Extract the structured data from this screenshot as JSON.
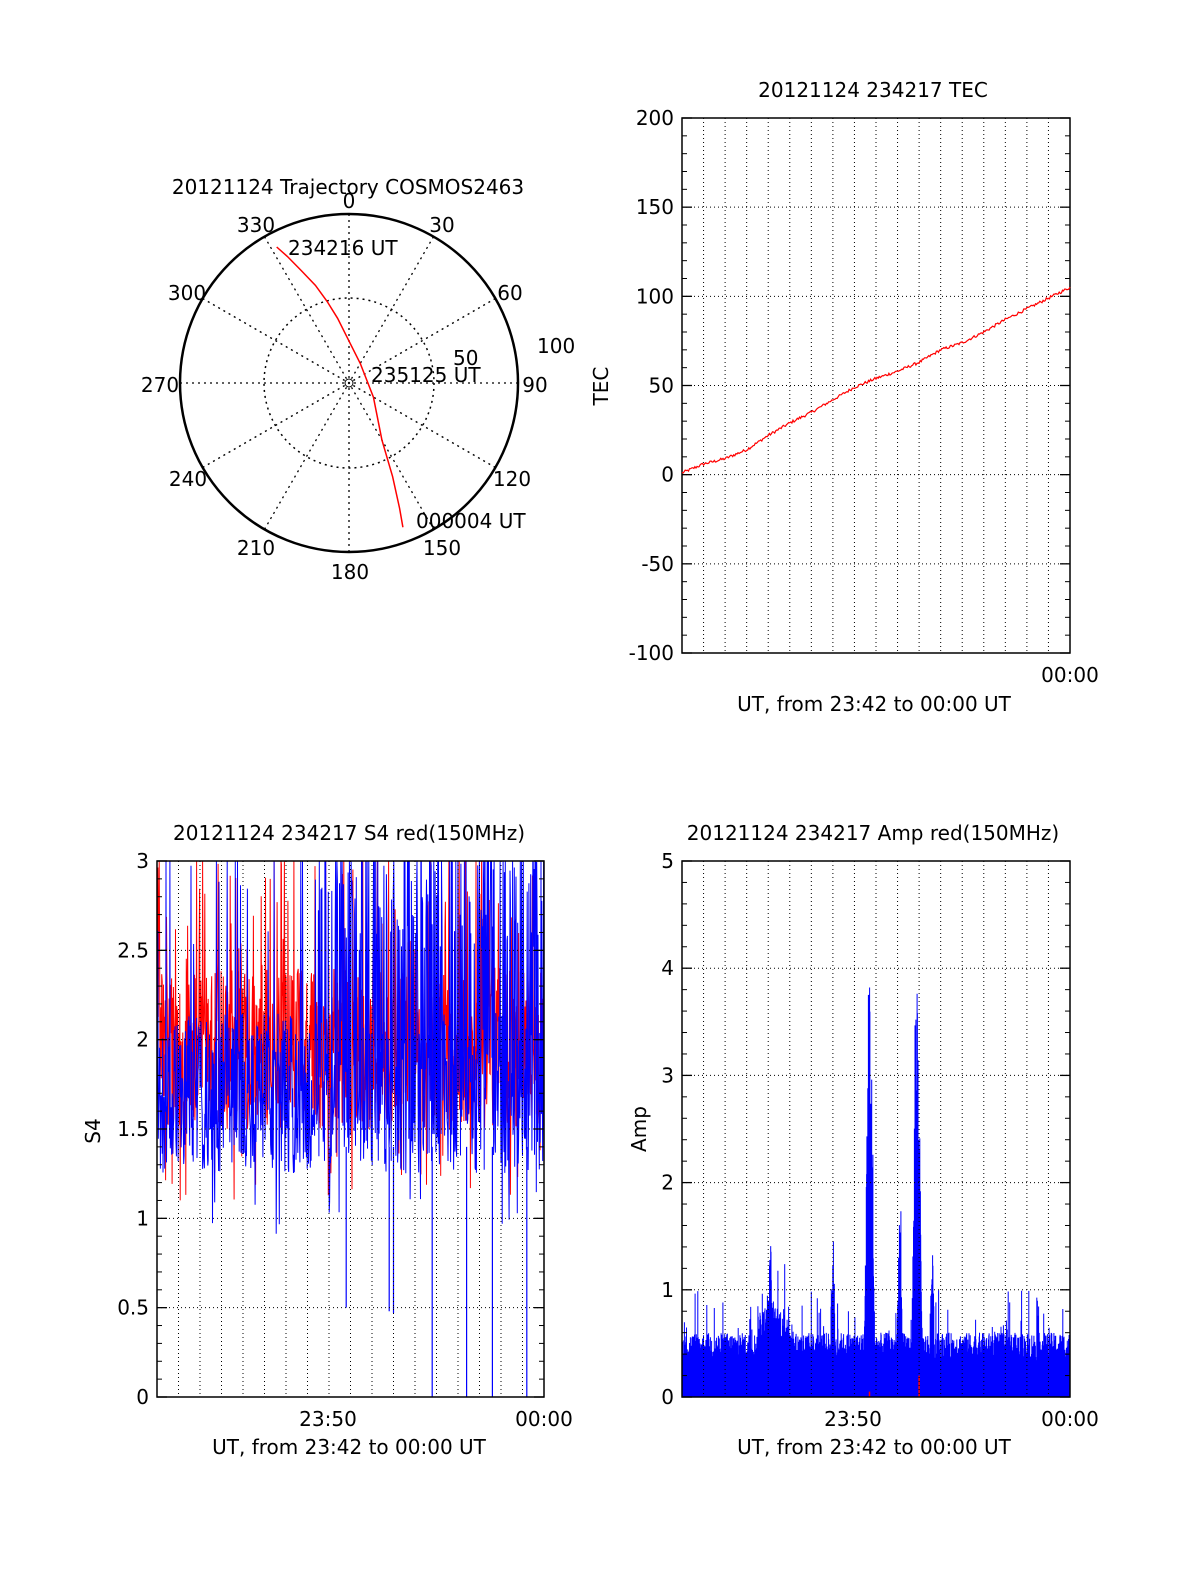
{
  "colors": {
    "red": "#ff0000",
    "blue": "#0000ff",
    "axis": "#000000",
    "grid": "#000000"
  },
  "chart_data": [
    {
      "type": "polar",
      "title": "20121124 Trajectory COSMOS2463",
      "azimuth_labels": [
        "0",
        "30",
        "60",
        "90",
        "120",
        "150",
        "180",
        "210",
        "240",
        "270",
        "300",
        "330"
      ],
      "radial_labels": [
        "50",
        "100"
      ],
      "track_labels": [
        "234216 UT",
        "235125 UT",
        "000004 UT"
      ],
      "track": {
        "azimuth_deg": [
          332,
          334,
          337,
          341,
          345,
          350,
          357,
          30,
          120,
          150,
          155,
          158,
          159.5
        ],
        "elevation_deg": [
          8,
          15,
          25,
          35,
          45,
          55,
          65,
          78,
          75,
          55,
          35,
          18,
          8
        ]
      }
    },
    {
      "type": "line",
      "title": "20121124 234217 TEC",
      "ylabel": "TEC",
      "xlabel": "UT, from 23:42 to 00:00 UT",
      "x_tick_labels": [
        "00:00"
      ],
      "y_tick_labels": [
        "200",
        "150",
        "100",
        "50",
        "0",
        "-50",
        "-100"
      ],
      "ylim": [
        -100,
        200
      ],
      "series": [
        {
          "x_min": [
            0,
            1,
            2,
            3,
            4,
            5,
            6,
            7,
            8,
            9,
            10,
            11,
            12,
            13,
            14,
            15,
            16,
            17,
            18
          ],
          "values": [
            1,
            6,
            9,
            14,
            22,
            29,
            35,
            42,
            49,
            54,
            58,
            63,
            70,
            74,
            80,
            87,
            93,
            99,
            105
          ]
        }
      ]
    },
    {
      "type": "line",
      "title": "20121124 234217 S4 red(150MHz)",
      "ylabel": "S4",
      "xlabel": "UT, from 23:42 to 00:00 UT",
      "x_tick_labels": [
        "23:50",
        "00:00"
      ],
      "y_tick_labels": [
        "3",
        "2.5",
        "2",
        "1.5",
        "1",
        "0.5",
        "0"
      ],
      "ylim": [
        0,
        3
      ],
      "xlim_min": [
        0,
        18
      ],
      "series": [
        {
          "name": "red",
          "approx_center": 1.95,
          "approx_spread": 0.45
        },
        {
          "name": "blue",
          "approx_center": 1.7,
          "approx_spread": 0.45
        }
      ]
    },
    {
      "type": "line",
      "title": "20121124 234217 Amp red(150MHz)",
      "ylabel": "Amp",
      "xlabel": "UT, from 23:42 to 00:00 UT",
      "x_tick_labels": [
        "23:50",
        "00:00"
      ],
      "y_tick_labels": [
        "5",
        "4",
        "3",
        "2",
        "1",
        "0"
      ],
      "ylim": [
        0,
        5
      ],
      "xlim_min": [
        0,
        18
      ],
      "series": [
        {
          "name": "blue",
          "baseline": 0.6,
          "peaks": [
            {
              "x_min": 4.1,
              "value": 1.48
            },
            {
              "x_min": 7.0,
              "value": 1.55
            },
            {
              "x_min": 8.7,
              "value": 4.2
            },
            {
              "x_min": 10.1,
              "value": 1.8
            },
            {
              "x_min": 10.9,
              "value": 4.15
            },
            {
              "x_min": 11.6,
              "value": 1.4
            }
          ]
        },
        {
          "name": "red",
          "values_near": 0.05
        }
      ]
    }
  ]
}
